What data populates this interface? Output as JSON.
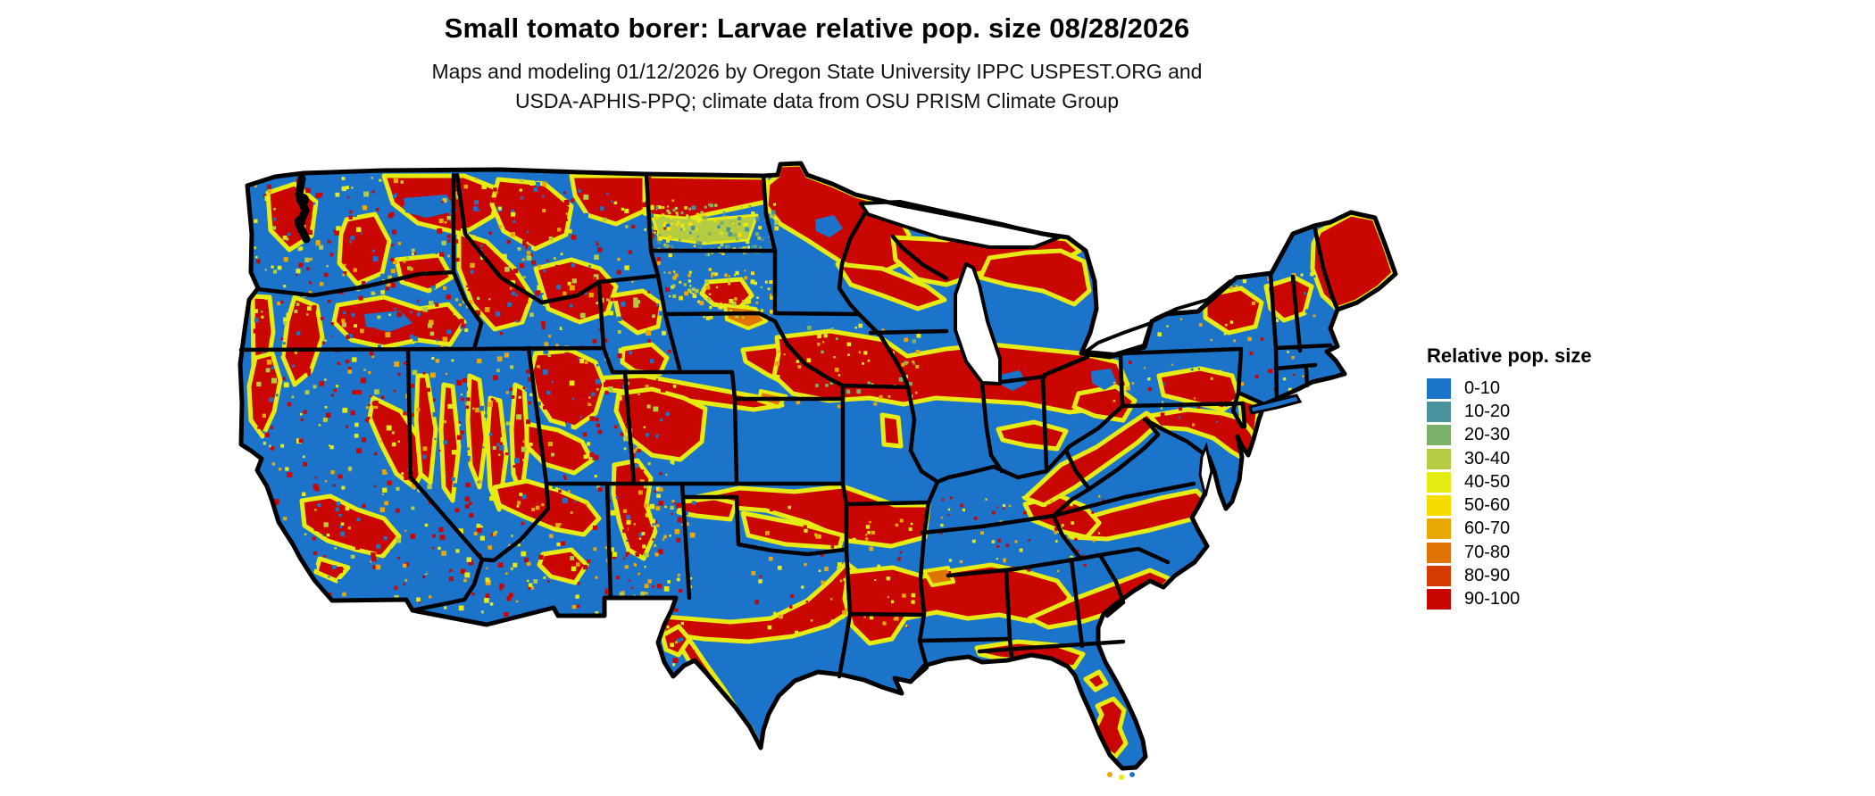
{
  "header": {
    "title": "Small tomato borer: Larvae relative pop. size 08/28/2026",
    "subtitle_line1": "Maps and modeling 01/12/2026 by Oregon State University IPPC USPEST.ORG and",
    "subtitle_line2": "USDA-APHIS-PPQ; climate data from OSU PRISM Climate Group"
  },
  "legend": {
    "title": "Relative pop. size",
    "entries": [
      {
        "label": "0-10",
        "color": "#1c73ca"
      },
      {
        "label": "10-20",
        "color": "#4a929e"
      },
      {
        "label": "20-30",
        "color": "#7bb06b"
      },
      {
        "label": "30-40",
        "color": "#b5cc42"
      },
      {
        "label": "40-50",
        "color": "#e6ec13"
      },
      {
        "label": "50-60",
        "color": "#f7dc00"
      },
      {
        "label": "60-70",
        "color": "#eaa807"
      },
      {
        "label": "70-80",
        "color": "#df7404"
      },
      {
        "label": "80-90",
        "color": "#d53c01"
      },
      {
        "label": "90-100",
        "color": "#c90601"
      }
    ]
  }
}
